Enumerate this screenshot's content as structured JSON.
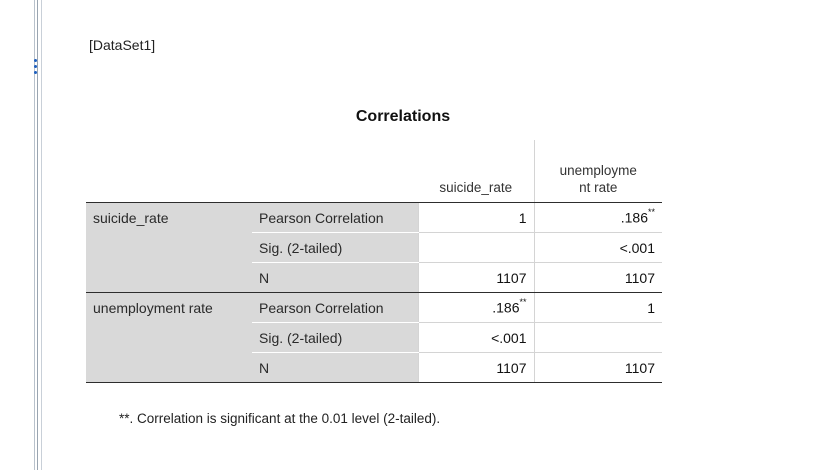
{
  "dataset_label": "[DataSet1]",
  "table": {
    "title": "Correlations",
    "col_headers": [
      "suicide_rate",
      "unemployme\nnt rate"
    ],
    "row_groups": [
      {
        "label": "suicide_rate",
        "rows": [
          {
            "stat": "Pearson Correlation",
            "v1": "1",
            "v2": ".186",
            "v2_mark": "**",
            "v1_mark": ""
          },
          {
            "stat": "Sig. (2-tailed)",
            "v1": "",
            "v2": "<.001",
            "v1_mark": "",
            "v2_mark": ""
          },
          {
            "stat": "N",
            "v1": "1107",
            "v2": "1107",
            "v1_mark": "",
            "v2_mark": ""
          }
        ]
      },
      {
        "label": "unemployment rate",
        "rows": [
          {
            "stat": "Pearson Correlation",
            "v1": ".186",
            "v1_mark": "**",
            "v2": "1",
            "v2_mark": ""
          },
          {
            "stat": "Sig. (2-tailed)",
            "v1": "<.001",
            "v2": "",
            "v1_mark": "",
            "v2_mark": ""
          },
          {
            "stat": "N",
            "v1": "1107",
            "v2": "1107",
            "v1_mark": "",
            "v2_mark": ""
          }
        ]
      }
    ],
    "footnote": "**. Correlation is significant at the 0.01 level (2-tailed)."
  },
  "colors": {
    "row_header_bg": "#d9d9d9",
    "rail_accent": "#1e5fbf"
  }
}
